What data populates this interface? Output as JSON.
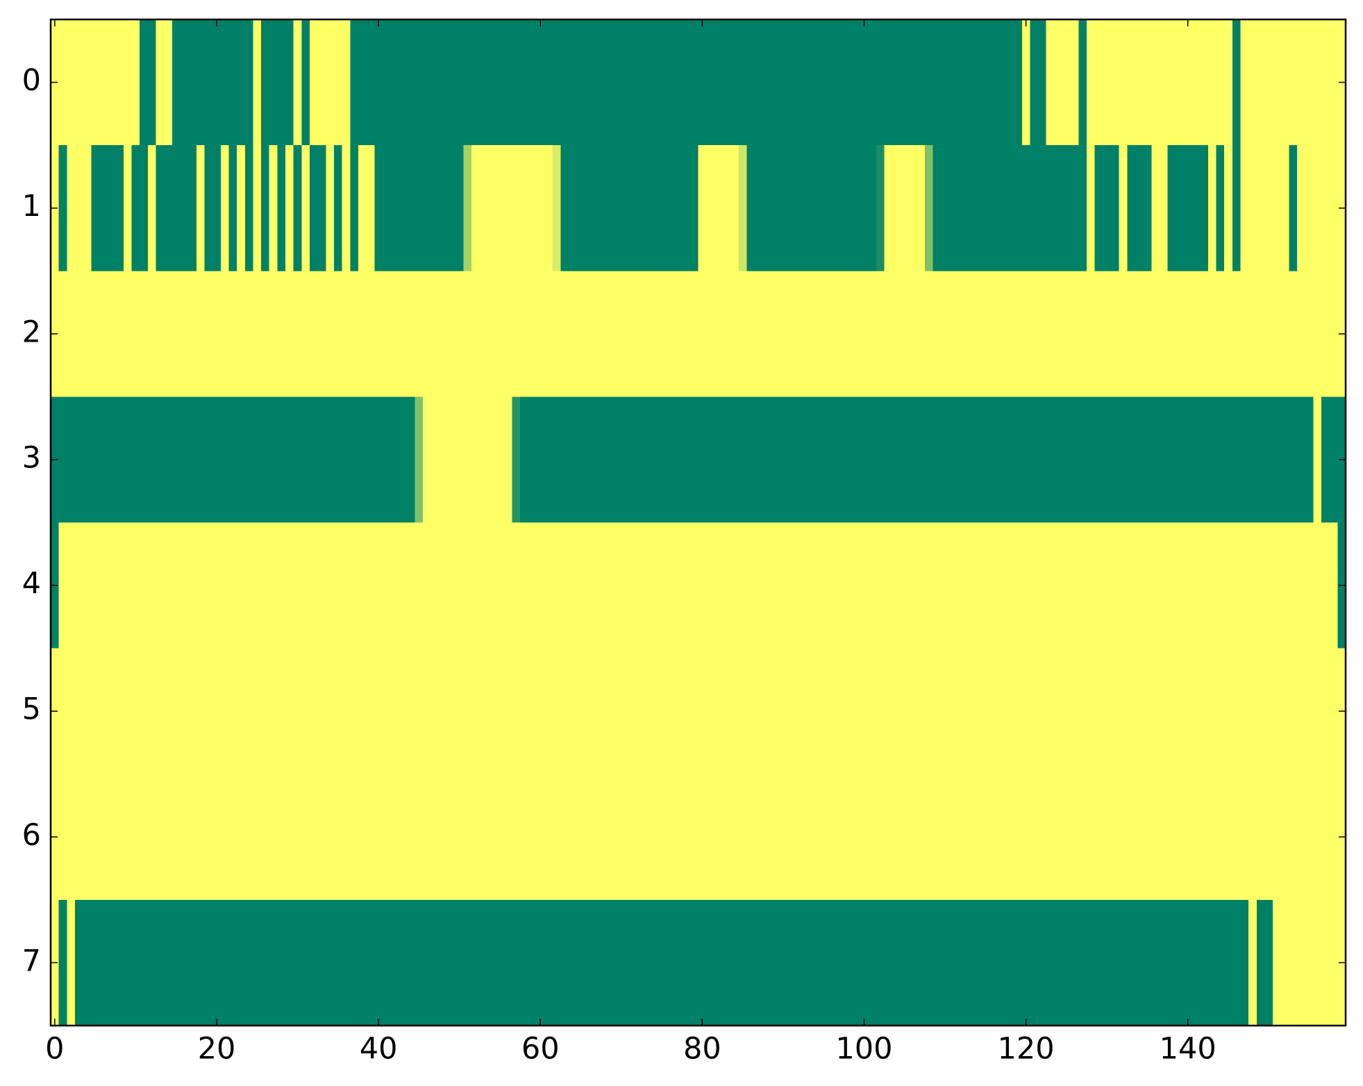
{
  "chart_data": {
    "type": "heatmap",
    "colormap": {
      "low": "#008066",
      "high": "#ffff66"
    },
    "xlim": [
      -0.5,
      159.5
    ],
    "ylim": [
      7.5,
      -0.5
    ],
    "xticks": [
      0,
      20,
      40,
      60,
      80,
      100,
      120,
      140
    ],
    "yticks": [
      0,
      1,
      2,
      3,
      4,
      5,
      6,
      7
    ],
    "values": [
      [
        1,
        1,
        1,
        1,
        1,
        1,
        1,
        1,
        1,
        1,
        1,
        0,
        0,
        1,
        1,
        0,
        0,
        0,
        0,
        0,
        0,
        0,
        0,
        0,
        0,
        1,
        0,
        0,
        0,
        0,
        1,
        0,
        1,
        1,
        1,
        1,
        1,
        0,
        0,
        0,
        0,
        0,
        0,
        0,
        0,
        0,
        0,
        0,
        0,
        0,
        0,
        0,
        0,
        0,
        0,
        0,
        0,
        0,
        0,
        0,
        0,
        0,
        0,
        0,
        0,
        0,
        0,
        0,
        0,
        0,
        0,
        0,
        0,
        0,
        0,
        0,
        0,
        0,
        0,
        0,
        0,
        0,
        0,
        0,
        0,
        0,
        0,
        0,
        0,
        0,
        0,
        0,
        0,
        0,
        0,
        0,
        0,
        0,
        0,
        0,
        0,
        0,
        0,
        0,
        0,
        0,
        0,
        0,
        0,
        0,
        0,
        0,
        0,
        0,
        0,
        0,
        0,
        0,
        0,
        0,
        1,
        0,
        0,
        1,
        1,
        1,
        1,
        0,
        1,
        1,
        1,
        1,
        1,
        1,
        1,
        1,
        1,
        1,
        1,
        1,
        1,
        1,
        1,
        1,
        1,
        1,
        0,
        1,
        1,
        1,
        1,
        1,
        1,
        1,
        1,
        1,
        1,
        1,
        1,
        1
      ],
      [
        1,
        0,
        1,
        1,
        1,
        0,
        0,
        0,
        0,
        1,
        0,
        0,
        1,
        0,
        0,
        0,
        0,
        0,
        1,
        0,
        0,
        1,
        0,
        1,
        0,
        1,
        0,
        1,
        0,
        1,
        0,
        1,
        0,
        0,
        1,
        0,
        1,
        0,
        1,
        1,
        0,
        0,
        0,
        0,
        0,
        0,
        0,
        0,
        0,
        0,
        0,
        0.65,
        1,
        1,
        1,
        1,
        1,
        1,
        1,
        1,
        1,
        1,
        0.85,
        0,
        0,
        0,
        0,
        0,
        0,
        0,
        0,
        0,
        0,
        0,
        0,
        0,
        0,
        0,
        0,
        0,
        1,
        1,
        1,
        1,
        1,
        0.8,
        0,
        0,
        0,
        0,
        0,
        0,
        0,
        0,
        0,
        0,
        0,
        0,
        0,
        0,
        0,
        0,
        0.1,
        1,
        1,
        1,
        1,
        1,
        0.5,
        0,
        0,
        0,
        0,
        0,
        0,
        0,
        0,
        0,
        0,
        0,
        0,
        0,
        0,
        0,
        0,
        0,
        0,
        0,
        1,
        0,
        0,
        0,
        1,
        0,
        0,
        0,
        1,
        1,
        0,
        0,
        0,
        0,
        0,
        1,
        0,
        1,
        0,
        1,
        1,
        1,
        1,
        1,
        1,
        0,
        1,
        1,
        1,
        1,
        1,
        1
      ],
      [
        1,
        1,
        1,
        1,
        1,
        1,
        1,
        1,
        1,
        1,
        1,
        1,
        1,
        1,
        1,
        1,
        1,
        1,
        1,
        1,
        1,
        1,
        1,
        1,
        1,
        1,
        1,
        1,
        1,
        1,
        1,
        1,
        1,
        1,
        1,
        1,
        1,
        1,
        1,
        1,
        1,
        1,
        1,
        1,
        1,
        1,
        1,
        1,
        1,
        1,
        1,
        1,
        1,
        1,
        1,
        1,
        1,
        1,
        1,
        1,
        1,
        1,
        1,
        1,
        1,
        1,
        1,
        1,
        1,
        1,
        1,
        1,
        1,
        1,
        1,
        1,
        1,
        1,
        1,
        1,
        1,
        1,
        1,
        1,
        1,
        1,
        1,
        1,
        1,
        1,
        1,
        1,
        1,
        1,
        1,
        1,
        1,
        1,
        1,
        1,
        1,
        1,
        1,
        1,
        1,
        1,
        1,
        1,
        1,
        1,
        1,
        1,
        1,
        1,
        1,
        1,
        1,
        1,
        1,
        1,
        1,
        1,
        1,
        1,
        1,
        1,
        1,
        1,
        1,
        1,
        1,
        1,
        1,
        1,
        1,
        1,
        1,
        1,
        1,
        1,
        1,
        1,
        1,
        1,
        1,
        1,
        1,
        1,
        1,
        1,
        1,
        1,
        1,
        1,
        1,
        1,
        1,
        1,
        1,
        1
      ],
      [
        0,
        0,
        0,
        0,
        0,
        0,
        0,
        0,
        0,
        0,
        0,
        0,
        0,
        0,
        0,
        0,
        0,
        0,
        0,
        0,
        0,
        0,
        0,
        0,
        0,
        0,
        0,
        0,
        0,
        0,
        0,
        0,
        0,
        0,
        0,
        0,
        0,
        0,
        0,
        0,
        0,
        0,
        0,
        0,
        0,
        0.5,
        1,
        1,
        1,
        1,
        1,
        1,
        1,
        1,
        1,
        1,
        1,
        0.15,
        0,
        0,
        0,
        0,
        0,
        0,
        0,
        0,
        0,
        0,
        0,
        0,
        0,
        0,
        0,
        0,
        0,
        0,
        0,
        0,
        0,
        0,
        0,
        0,
        0,
        0,
        0,
        0,
        0,
        0,
        0,
        0,
        0,
        0,
        0,
        0,
        0,
        0,
        0,
        0,
        0,
        0,
        0,
        0,
        0,
        0,
        0,
        0,
        0,
        0,
        0,
        0,
        0,
        0,
        0,
        0,
        0,
        0,
        0,
        0,
        0,
        0,
        0,
        0,
        0,
        0,
        0,
        0,
        0,
        0,
        0,
        0,
        0,
        0,
        0,
        0,
        0,
        0,
        0,
        0,
        0,
        0,
        0,
        0,
        0,
        0,
        0,
        0,
        0,
        0,
        0,
        0,
        0,
        0,
        0,
        0,
        0,
        0,
        1,
        0,
        0,
        0
      ],
      [
        0,
        1,
        1,
        1,
        1,
        1,
        1,
        1,
        1,
        1,
        1,
        1,
        1,
        1,
        1,
        1,
        1,
        1,
        1,
        1,
        1,
        1,
        1,
        1,
        1,
        1,
        1,
        1,
        1,
        1,
        1,
        1,
        1,
        1,
        1,
        1,
        1,
        1,
        1,
        1,
        1,
        1,
        1,
        1,
        1,
        1,
        1,
        1,
        1,
        1,
        1,
        1,
        1,
        1,
        1,
        1,
        1,
        1,
        1,
        1,
        1,
        1,
        1,
        1,
        1,
        1,
        1,
        1,
        1,
        1,
        1,
        1,
        1,
        1,
        1,
        1,
        1,
        1,
        1,
        1,
        1,
        1,
        1,
        1,
        1,
        1,
        1,
        1,
        1,
        1,
        1,
        1,
        1,
        1,
        1,
        1,
        1,
        1,
        1,
        1,
        1,
        1,
        1,
        1,
        1,
        1,
        1,
        1,
        1,
        1,
        1,
        1,
        1,
        1,
        1,
        1,
        1,
        1,
        1,
        1,
        1,
        1,
        1,
        1,
        1,
        1,
        1,
        1,
        1,
        1,
        1,
        1,
        1,
        1,
        1,
        1,
        1,
        1,
        1,
        1,
        1,
        1,
        1,
        1,
        1,
        1,
        1,
        1,
        1,
        1,
        1,
        1,
        1,
        1,
        1,
        1,
        1,
        1,
        1,
        0
      ],
      [
        1,
        1,
        1,
        1,
        1,
        1,
        1,
        1,
        1,
        1,
        1,
        1,
        1,
        1,
        1,
        1,
        1,
        1,
        1,
        1,
        1,
        1,
        1,
        1,
        1,
        1,
        1,
        1,
        1,
        1,
        1,
        1,
        1,
        1,
        1,
        1,
        1,
        1,
        1,
        1,
        1,
        1,
        1,
        1,
        1,
        1,
        1,
        1,
        1,
        1,
        1,
        1,
        1,
        1,
        1,
        1,
        1,
        1,
        1,
        1,
        1,
        1,
        1,
        1,
        1,
        1,
        1,
        1,
        1,
        1,
        1,
        1,
        1,
        1,
        1,
        1,
        1,
        1,
        1,
        1,
        1,
        1,
        1,
        1,
        1,
        1,
        1,
        1,
        1,
        1,
        1,
        1,
        1,
        1,
        1,
        1,
        1,
        1,
        1,
        1,
        1,
        1,
        1,
        1,
        1,
        1,
        1,
        1,
        1,
        1,
        1,
        1,
        1,
        1,
        1,
        1,
        1,
        1,
        1,
        1,
        1,
        1,
        1,
        1,
        1,
        1,
        1,
        1,
        1,
        1,
        1,
        1,
        1,
        1,
        1,
        1,
        1,
        1,
        1,
        1,
        1,
        1,
        1,
        1,
        1,
        1,
        1,
        1,
        1,
        1,
        1,
        1,
        1,
        1,
        1,
        1,
        1,
        1,
        1,
        1
      ],
      [
        1,
        1,
        1,
        1,
        1,
        1,
        1,
        1,
        1,
        1,
        1,
        1,
        1,
        1,
        1,
        1,
        1,
        1,
        1,
        1,
        1,
        1,
        1,
        1,
        1,
        1,
        1,
        1,
        1,
        1,
        1,
        1,
        1,
        1,
        1,
        1,
        1,
        1,
        1,
        1,
        1,
        1,
        1,
        1,
        1,
        1,
        1,
        1,
        1,
        1,
        1,
        1,
        1,
        1,
        1,
        1,
        1,
        1,
        1,
        1,
        1,
        1,
        1,
        1,
        1,
        1,
        1,
        1,
        1,
        1,
        1,
        1,
        1,
        1,
        1,
        1,
        1,
        1,
        1,
        1,
        1,
        1,
        1,
        1,
        1,
        1,
        1,
        1,
        1,
        1,
        1,
        1,
        1,
        1,
        1,
        1,
        1,
        1,
        1,
        1,
        1,
        1,
        1,
        1,
        1,
        1,
        1,
        1,
        1,
        1,
        1,
        1,
        1,
        1,
        1,
        1,
        1,
        1,
        1,
        1,
        1,
        1,
        1,
        1,
        1,
        1,
        1,
        1,
        1,
        1,
        1,
        1,
        1,
        1,
        1,
        1,
        1,
        1,
        1,
        1,
        1,
        1,
        1,
        1,
        1,
        1,
        1,
        1,
        1,
        1,
        1,
        1,
        1,
        1,
        1,
        1,
        1,
        1,
        1,
        1
      ],
      [
        1,
        0,
        1,
        0,
        0,
        0,
        0,
        0,
        0,
        0,
        0,
        0,
        0,
        0,
        0,
        0,
        0,
        0,
        0,
        0,
        0,
        0,
        0,
        0,
        0,
        0,
        0,
        0,
        0,
        0,
        0,
        0,
        0,
        0,
        0,
        0,
        0,
        0,
        0,
        0,
        0,
        0,
        0,
        0,
        0,
        0,
        0,
        0,
        0,
        0,
        0,
        0,
        0,
        0,
        0,
        0,
        0,
        0,
        0,
        0,
        0,
        0,
        0,
        0,
        0,
        0,
        0,
        0,
        0,
        0,
        0,
        0,
        0,
        0,
        0,
        0,
        0,
        0,
        0,
        0,
        0,
        0,
        0,
        0,
        0,
        0,
        0,
        0,
        0,
        0,
        0,
        0,
        0,
        0,
        0,
        0,
        0,
        0,
        0,
        0,
        0,
        0,
        0,
        0,
        0,
        0,
        0,
        0,
        0,
        0,
        0,
        0,
        0,
        0,
        0,
        0,
        0,
        0,
        0,
        0,
        0,
        0,
        0,
        0,
        0,
        0,
        0,
        0,
        0,
        0,
        0,
        0,
        0,
        0,
        0,
        0,
        0,
        0,
        0,
        0,
        0,
        0,
        0,
        0,
        0,
        0,
        0,
        0,
        1,
        0,
        0,
        1,
        1,
        1,
        1,
        1,
        1,
        1,
        1,
        1
      ]
    ]
  }
}
